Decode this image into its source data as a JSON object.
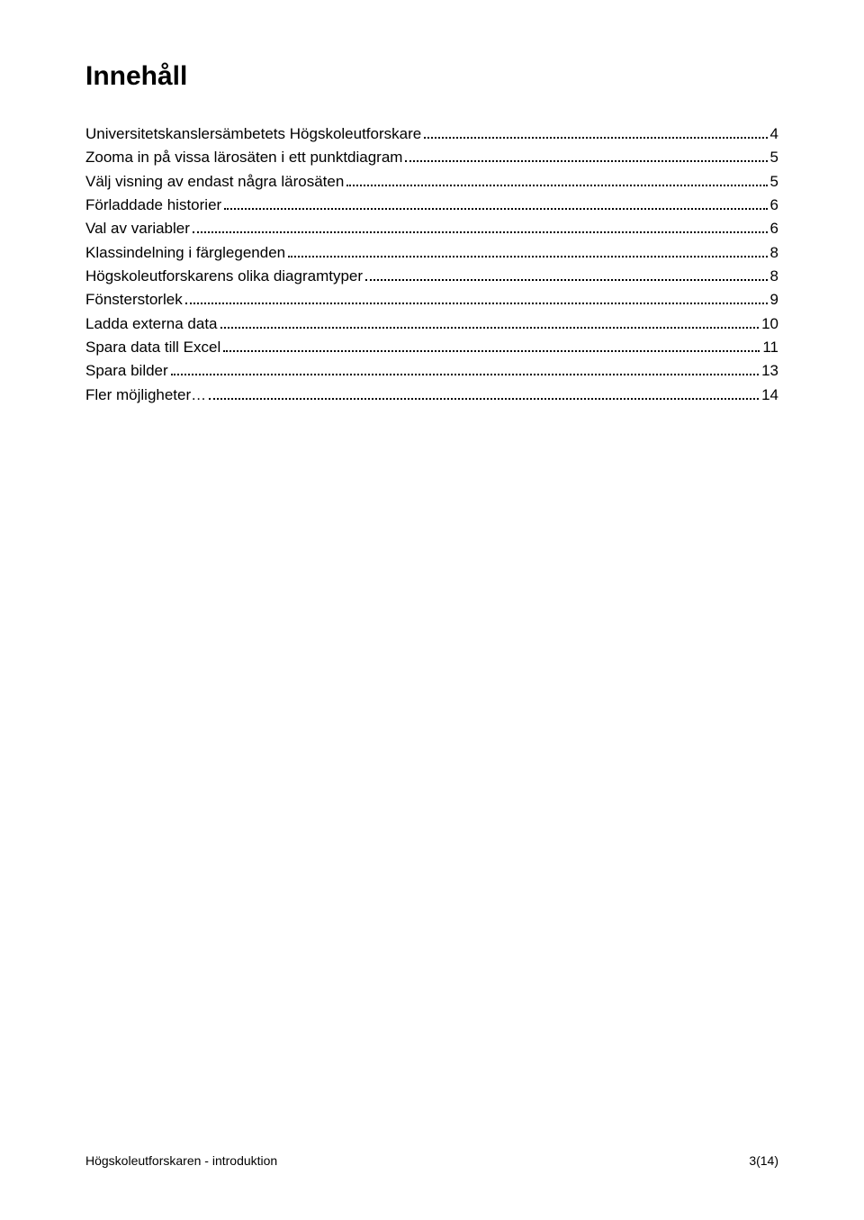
{
  "title": "Innehåll",
  "toc": {
    "entries": [
      {
        "label": "Universitetskanslersämbetets Högskoleutforskare",
        "page": "4"
      },
      {
        "label": "Zooma in på vissa lärosäten i ett punktdiagram",
        "page": "5"
      },
      {
        "label": "Välj visning av endast några lärosäten",
        "page": "5"
      },
      {
        "label": "Förladdade historier",
        "page": "6"
      },
      {
        "label": "Val av variabler",
        "page": "6"
      },
      {
        "label": "Klassindelning i färglegenden",
        "page": "8"
      },
      {
        "label": "Högskoleutforskarens olika diagramtyper",
        "page": "8"
      },
      {
        "label": "Fönsterstorlek",
        "page": "9"
      },
      {
        "label": "Ladda externa data",
        "page": "10"
      },
      {
        "label": "Spara data till Excel",
        "page": "11"
      },
      {
        "label": "Spara bilder",
        "page": "13"
      },
      {
        "label": "Fler möjligheter…",
        "page": "14"
      }
    ]
  },
  "footer": {
    "left": "Högskoleutforskaren - introduktion",
    "right": "3(14)"
  },
  "colors": {
    "background": "#ffffff",
    "text": "#000000"
  }
}
